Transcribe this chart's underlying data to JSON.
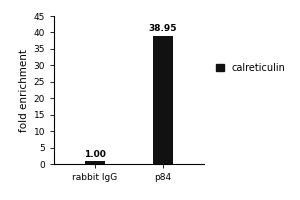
{
  "categories": [
    "rabbit IgG",
    "p84"
  ],
  "values": [
    1.0,
    38.95
  ],
  "bar_colors": [
    "#111111",
    "#111111"
  ],
  "bar_labels": [
    "1.00",
    "38.95"
  ],
  "ylabel": "fold enrichment",
  "ylim": [
    0,
    45.0
  ],
  "yticks": [
    0.0,
    5.0,
    10.0,
    15.0,
    20.0,
    25.0,
    30.0,
    35.0,
    40.0,
    45.0
  ],
  "legend_label": "calreticulin",
  "legend_color": "#111111",
  "bar_width": 0.3,
  "background_color": "#ffffff",
  "label_fontsize": 6.5,
  "tick_fontsize": 6.5,
  "ylabel_fontsize": 7.5,
  "legend_fontsize": 7.0
}
